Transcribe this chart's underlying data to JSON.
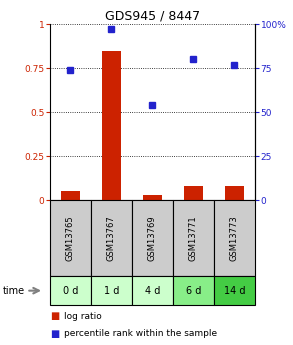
{
  "title": "GDS945 / 8447",
  "samples": [
    "GSM13765",
    "GSM13767",
    "GSM13769",
    "GSM13771",
    "GSM13773"
  ],
  "time_labels": [
    "0 d",
    "1 d",
    "4 d",
    "6 d",
    "14 d"
  ],
  "log_ratio": [
    0.05,
    0.85,
    0.03,
    0.08,
    0.08
  ],
  "percentile_rank": [
    74,
    97,
    54,
    80,
    77
  ],
  "bar_color": "#cc2200",
  "dot_color": "#2222cc",
  "left_yticks": [
    0,
    0.25,
    0.5,
    0.75,
    1.0
  ],
  "left_yticklabels": [
    "0",
    "0.25",
    "0.5",
    "0.75",
    "1"
  ],
  "right_yticks": [
    0,
    25,
    50,
    75,
    100
  ],
  "right_yticklabels": [
    "0",
    "25",
    "50",
    "75",
    "100%"
  ],
  "ylim": [
    0,
    1.0
  ],
  "right_ylim": [
    0,
    100
  ],
  "sample_box_color": "#cccccc",
  "time_box_colors": [
    "#ccffcc",
    "#ccffcc",
    "#ccffcc",
    "#88ee88",
    "#44cc44"
  ],
  "legend_bar_label": "log ratio",
  "legend_dot_label": "percentile rank within the sample"
}
